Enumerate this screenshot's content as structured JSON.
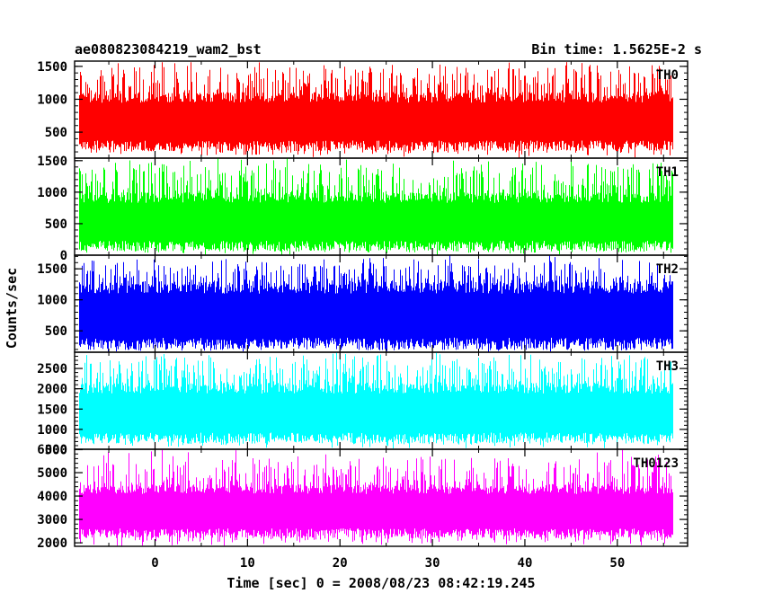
{
  "chart_data": {
    "type": "line",
    "title": "ae080823084219_wam2_bst",
    "subtitle": "Bin time: 1.5625E-2 s",
    "xlabel": "Time [sec] 0 = 2008/08/23 08:42:19.245",
    "ylabel": "Counts/sec",
    "x_ticks": [
      0,
      10,
      20,
      30,
      40,
      50
    ],
    "xlim": [
      -8.7,
      57.6
    ],
    "x_range": [
      -8.2,
      55.9
    ],
    "panels": [
      {
        "name": "TH0",
        "color": "#ff0000",
        "ylim": [
          105,
          1580
        ],
        "y_ticks": [
          500,
          1000,
          1500
        ],
        "base": 210,
        "top": 1110,
        "peak": 1580,
        "spike": 1580
      },
      {
        "name": "TH1",
        "color": "#00ff00",
        "ylim": [
          0,
          1540
        ],
        "y_ticks": [
          0,
          500,
          1000,
          1500
        ],
        "base": 60,
        "top": 1000,
        "peak": 1540,
        "spike": 1540
      },
      {
        "name": "TH2",
        "color": "#0000ff",
        "ylim": [
          155,
          1720
        ],
        "y_ticks": [
          500,
          1000,
          1500
        ],
        "base": 190,
        "top": 1300,
        "peak": 1720,
        "spike": 1720
      },
      {
        "name": "TH3",
        "color": "#00ffff",
        "ylim": [
          510,
          2900
        ],
        "y_ticks": [
          500,
          1000,
          1500,
          2000,
          2500
        ],
        "base": 650,
        "top": 2150,
        "peak": 2900,
        "spike": 2900
      },
      {
        "name": "TH0123",
        "color": "#ff00ff",
        "ylim": [
          1850,
          6000
        ],
        "y_ticks": [
          2000,
          3000,
          4000,
          5000,
          6000
        ],
        "base": 2200,
        "top": 4500,
        "peak": 5700,
        "spike": 6000
      }
    ]
  }
}
